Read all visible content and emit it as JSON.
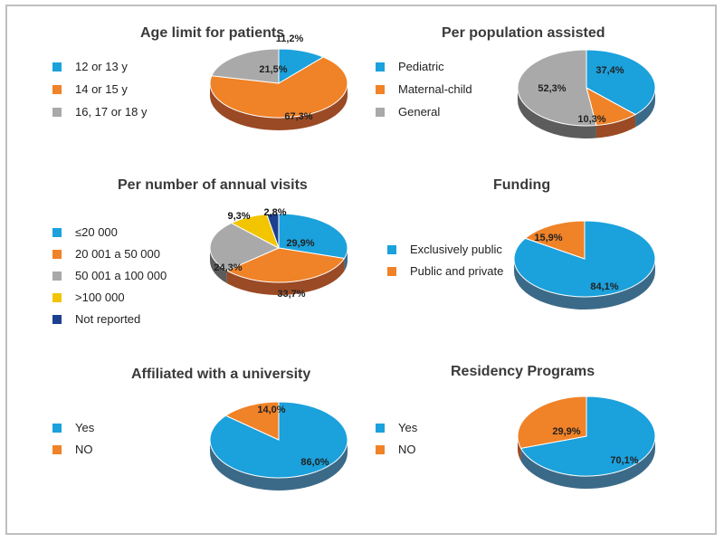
{
  "colors": {
    "blue": "#1ba1dc",
    "blue_side": "#3b6a88",
    "orange": "#f08228",
    "orange_side": "#9a4a24",
    "gray": "#a9a9a9",
    "gray_side": "#5c5c5c",
    "yellow": "#f2c500",
    "navy": "#1c3f8f"
  },
  "chart_data": [
    {
      "type": "pie",
      "title": "Age limit for patients",
      "slices": [
        {
          "label": "12 or 13 y",
          "value": 11.2,
          "display": "11,2%",
          "color": "blue"
        },
        {
          "label": "14 or 15 y",
          "value": 67.3,
          "display": "67,3%",
          "color": "orange"
        },
        {
          "label": "16, 17 or 18 y",
          "value": 21.5,
          "display": "21,5%",
          "color": "gray"
        }
      ]
    },
    {
      "type": "pie",
      "title": "Per population assisted",
      "slices": [
        {
          "label": "Pediatric",
          "value": 37.4,
          "display": "37,4%",
          "color": "blue"
        },
        {
          "label": "Maternal-child",
          "value": 10.3,
          "display": "10,3%",
          "color": "orange"
        },
        {
          "label": "General",
          "value": 52.3,
          "display": "52,3%",
          "color": "gray"
        }
      ]
    },
    {
      "type": "pie",
      "title": "Per number of annual visits",
      "slices": [
        {
          "label": "≤20 000",
          "value": 29.9,
          "display": "29,9%",
          "color": "blue"
        },
        {
          "label": "20 001 a 50 000",
          "value": 33.7,
          "display": "33,7%",
          "color": "orange"
        },
        {
          "label": "50 001 a 100 000",
          "value": 24.3,
          "display": "24,3%",
          "color": "gray"
        },
        {
          "label": ">100 000",
          "value": 9.3,
          "display": "9,3%",
          "color": "yellow"
        },
        {
          "label": "Not reported",
          "value": 2.8,
          "display": "2,8%",
          "color": "navy"
        }
      ]
    },
    {
      "type": "pie",
      "title": "Funding",
      "slices": [
        {
          "label": "Exclusively public",
          "value": 84.1,
          "display": "84,1%",
          "color": "blue"
        },
        {
          "label": "Public and private",
          "value": 15.9,
          "display": "15,9%",
          "color": "orange"
        }
      ]
    },
    {
      "type": "pie",
      "title": "Affiliated  with a university",
      "slices": [
        {
          "label": "Yes",
          "value": 86.0,
          "display": "86,0%",
          "color": "blue"
        },
        {
          "label": "NO",
          "value": 14.0,
          "display": "14,0%",
          "color": "orange"
        }
      ]
    },
    {
      "type": "pie",
      "title": "Residency Programs",
      "slices": [
        {
          "label": "Yes",
          "value": 70.1,
          "display": "70,1%",
          "color": "blue"
        },
        {
          "label": "NO",
          "value": 29.9,
          "display": "29,9%",
          "color": "orange"
        }
      ]
    }
  ]
}
